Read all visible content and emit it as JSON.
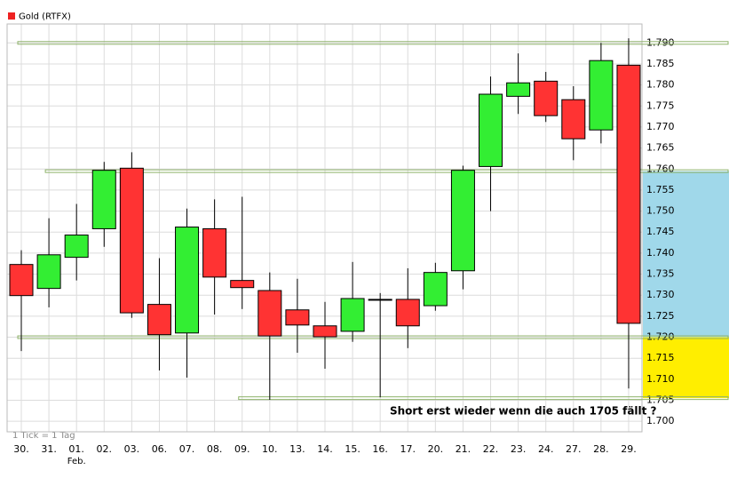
{
  "chart_data": {
    "type": "candlestick",
    "legend": "Gold (RTFX)",
    "footnote": "1 Tick = 1 Tag",
    "annotation": "Short erst wieder wenn die auch 1705 fällt ?",
    "month_label": "Feb.",
    "categories": [
      "30.",
      "31.",
      "01.",
      "02.",
      "03.",
      "06.",
      "07.",
      "08.",
      "09.",
      "10.",
      "13.",
      "14.",
      "15.",
      "16.",
      "17.",
      "20.",
      "21.",
      "22.",
      "23.",
      "24.",
      "27.",
      "28.",
      "29."
    ],
    "open": [
      1737.3,
      1731.6,
      1739.0,
      1745.8,
      1760.2,
      1727.8,
      1721.0,
      1745.8,
      1733.5,
      1731.1,
      1726.5,
      1722.7,
      1721.4,
      1729.0,
      1729.0,
      1727.5,
      1735.8,
      1760.6,
      1777.3,
      1780.9,
      1776.5,
      1769.3,
      1784.7
    ],
    "high": [
      1740.7,
      1748.3,
      1751.7,
      1761.7,
      1764.0,
      1738.8,
      1750.6,
      1752.8,
      1753.4,
      1735.4,
      1733.9,
      1728.4,
      1737.9,
      1730.5,
      1736.4,
      1737.7,
      1760.8,
      1782.0,
      1787.5,
      1783.1,
      1779.7,
      1790.0,
      1791.1
    ],
    "low": [
      1716.7,
      1727.1,
      1733.5,
      1741.5,
      1724.6,
      1712.1,
      1710.4,
      1725.4,
      1726.7,
      1705.1,
      1716.3,
      1712.5,
      1718.9,
      1705.7,
      1717.4,
      1726.3,
      1731.4,
      1750.0,
      1773.1,
      1771.2,
      1762.1,
      1766.1,
      1707.8
    ],
    "close": [
      1729.9,
      1739.6,
      1744.3,
      1759.7,
      1725.8,
      1720.6,
      1746.2,
      1734.3,
      1731.8,
      1720.3,
      1722.9,
      1720.1,
      1729.2,
      1729.0,
      1722.7,
      1735.4,
      1759.7,
      1777.8,
      1780.5,
      1772.7,
      1767.2,
      1785.8,
      1723.3
    ],
    "up_color": "#33ee33",
    "down_color": "#ff3333",
    "legend_color": "#ee2222",
    "ylim": [
      1697.5,
      1794.5
    ],
    "yticks": [
      {
        "value": 1700,
        "label": "1.700"
      },
      {
        "value": 1705,
        "label": "1.705"
      },
      {
        "value": 1710,
        "label": "1.710"
      },
      {
        "value": 1715,
        "label": "1.715"
      },
      {
        "value": 1720,
        "label": "1.720"
      },
      {
        "value": 1725,
        "label": "1.725"
      },
      {
        "value": 1730,
        "label": "1.730"
      },
      {
        "value": 1735,
        "label": "1.735"
      },
      {
        "value": 1740,
        "label": "1.740"
      },
      {
        "value": 1745,
        "label": "1.745"
      },
      {
        "value": 1750,
        "label": "1.750"
      },
      {
        "value": 1755,
        "label": "1.755"
      },
      {
        "value": 1760,
        "label": "1.760"
      },
      {
        "value": 1765,
        "label": "1.765"
      },
      {
        "value": 1770,
        "label": "1.770"
      },
      {
        "value": 1775,
        "label": "1.775"
      },
      {
        "value": 1780,
        "label": "1.780"
      },
      {
        "value": 1785,
        "label": "1.785"
      },
      {
        "value": 1790,
        "label": "1.790"
      }
    ],
    "grid": true,
    "hlines": [
      {
        "value": 1790,
        "from": 0,
        "color": "#8fb36a"
      },
      {
        "value": 1759.5,
        "from": 1,
        "color": "#8fb36a"
      },
      {
        "value": 1720,
        "from": 0,
        "color": "#8fb36a"
      },
      {
        "value": 1705.5,
        "from": 8,
        "color": "#8fb36a"
      }
    ],
    "zones": [
      {
        "from": 1720,
        "to": 1759.5,
        "color": "#a0d8ea"
      },
      {
        "from": 1705.5,
        "to": 1720,
        "color": "#ffee00"
      }
    ]
  }
}
